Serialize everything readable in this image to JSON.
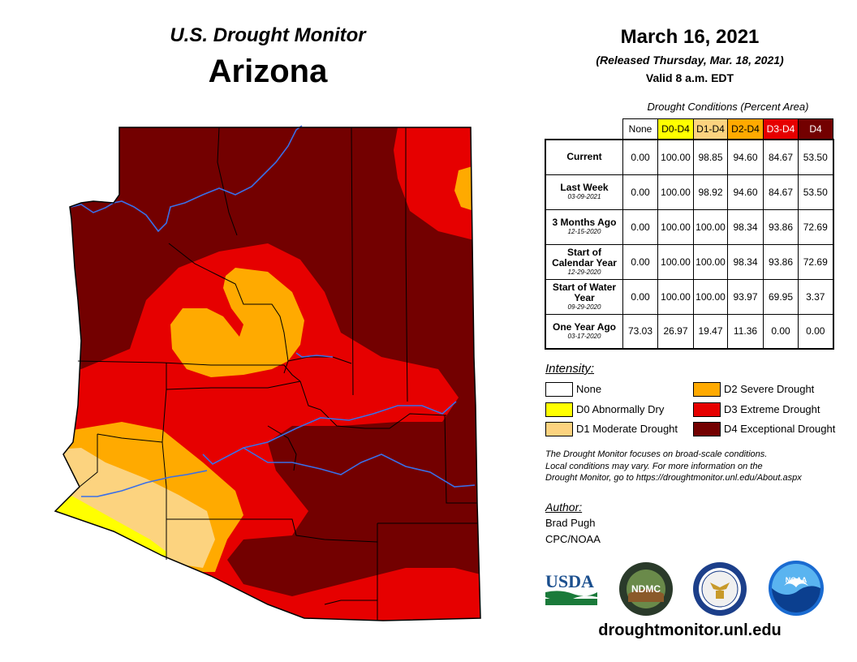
{
  "header": {
    "monitor_title": "U.S. Drought Monitor",
    "state": "Arizona",
    "date": "March 16, 2021",
    "released": "(Released Thursday, Mar. 18, 2021)",
    "valid": "Valid 8 a.m. EDT"
  },
  "table": {
    "caption": "Drought Conditions (Percent Area)",
    "columns": [
      {
        "label": "None",
        "color": "#ffffff",
        "text_color": "#000000"
      },
      {
        "label": "D0-D4",
        "color": "#ffff00",
        "text_color": "#000000"
      },
      {
        "label": "D1-D4",
        "color": "#fcd37f",
        "text_color": "#000000"
      },
      {
        "label": "D2-D4",
        "color": "#ffaa00",
        "text_color": "#000000"
      },
      {
        "label": "D3-D4",
        "color": "#e60000",
        "text_color": "#ffffff"
      },
      {
        "label": "D4",
        "color": "#730000",
        "text_color": "#ffffff"
      }
    ],
    "rows": [
      {
        "label": "Current",
        "date": "",
        "values": [
          "0.00",
          "100.00",
          "98.85",
          "94.60",
          "84.67",
          "53.50"
        ]
      },
      {
        "label": "Last Week",
        "date": "03-09-2021",
        "values": [
          "0.00",
          "100.00",
          "98.92",
          "94.60",
          "84.67",
          "53.50"
        ]
      },
      {
        "label": "3 Months Ago",
        "date": "12-15-2020",
        "values": [
          "0.00",
          "100.00",
          "100.00",
          "98.34",
          "93.86",
          "72.69"
        ]
      },
      {
        "label": "Start of Calendar Year",
        "date": "12-29-2020",
        "values": [
          "0.00",
          "100.00",
          "100.00",
          "98.34",
          "93.86",
          "72.69"
        ]
      },
      {
        "label": "Start of Water Year",
        "date": "09-29-2020",
        "values": [
          "0.00",
          "100.00",
          "100.00",
          "93.97",
          "69.95",
          "3.37"
        ]
      },
      {
        "label": "One Year Ago",
        "date": "03-17-2020",
        "values": [
          "73.03",
          "26.97",
          "19.47",
          "11.36",
          "0.00",
          "0.00"
        ]
      }
    ]
  },
  "intensity": {
    "title": "Intensity:",
    "items": [
      {
        "label": "None",
        "color": "#ffffff"
      },
      {
        "label": "D0 Abnormally Dry",
        "color": "#ffff00"
      },
      {
        "label": "D1 Moderate Drought",
        "color": "#fcd37f"
      },
      {
        "label": "D2 Severe Drought",
        "color": "#ffaa00"
      },
      {
        "label": "D3 Extreme Drought",
        "color": "#e60000"
      },
      {
        "label": "D4 Exceptional Drought",
        "color": "#730000"
      }
    ]
  },
  "note": {
    "line1": "The Drought Monitor focuses on broad-scale conditions.",
    "line2": "Local conditions may vary. For more information on the",
    "line3": "Drought Monitor, go to https://droughtmonitor.unl.edu/About.aspx"
  },
  "author": {
    "title": "Author:",
    "name": "Brad Pugh",
    "org": "CPC/NOAA"
  },
  "logos": {
    "usda": "USDA",
    "ndmc": "NDMC",
    "noaa": "NOAA",
    "commerce_icon": "eagle-seal-icon"
  },
  "site": "droughtmonitor.unl.edu"
}
